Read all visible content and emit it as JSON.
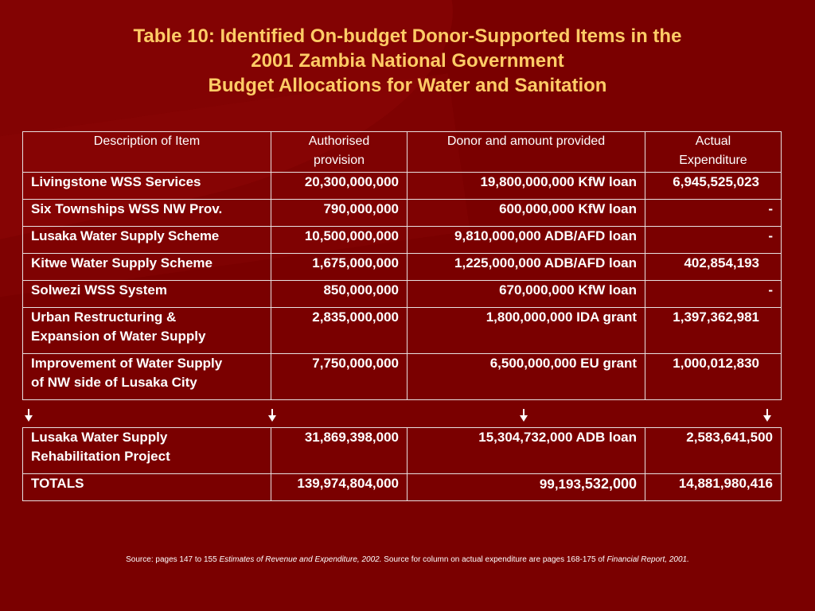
{
  "title": {
    "line1": "Table 10: Identified On-budget Donor-Supported Items in the",
    "line2": "2001 Zambia National Government",
    "line3": "Budget Allocations for Water and Sanitation"
  },
  "table": {
    "headers": {
      "description": "Description of Item",
      "authorised_1": "Authorised",
      "authorised_2": "provision",
      "donor": "Donor and amount provided",
      "actual_1": "Actual",
      "actual_2": "Expenditure"
    },
    "rows": [
      {
        "desc1": "Livingstone WSS Services",
        "desc2": "",
        "authorised": "20,300,000,000",
        "donor": "19,800,000,000 KfW loan",
        "actual": "6,945,525,023"
      },
      {
        "desc1": "Six Townships WSS NW Prov.",
        "desc2": "",
        "authorised": "790,000,000",
        "donor": "600,000,000 KfW loan",
        "actual": "-"
      },
      {
        "desc1": "Lusaka Water Supply Scheme",
        "desc2": "",
        "authorised": "10,500,000,000",
        "donor": "9,810,000,000 ADB/AFD loan",
        "actual": "-"
      },
      {
        "desc1": "Kitwe Water Supply Scheme",
        "desc2": "",
        "authorised": "1,675,000,000",
        "donor": "1,225,000,000 ADB/AFD loan",
        "actual": "402,854,193"
      },
      {
        "desc1": "Solwezi WSS System",
        "desc2": "",
        "authorised": "850,000,000",
        "donor": "670,000,000 KfW loan",
        "actual": "-"
      },
      {
        "desc1": "Urban Restructuring &",
        "desc2": "Expansion of Water Supply",
        "authorised": "2,835,000,000",
        "donor": "1,800,000,000 IDA grant",
        "actual": "1,397,362,981"
      },
      {
        "desc1": "Improvement of Water Supply",
        "desc2": "of NW side of Lusaka City",
        "authorised": "7,750,000,000",
        "donor": "6,500,000,000 EU grant",
        "actual": "1,000,012,830"
      }
    ],
    "bottom_rows": [
      {
        "desc1": "Lusaka Water Supply",
        "desc2": "Rehabilitation Project",
        "authorised": "31,869,398,000",
        "donor": "15,304,732,000 ADB loan",
        "actual": "2,583,641,500"
      }
    ],
    "totals": {
      "label": "TOTALS",
      "authorised": "139,974,804,000",
      "donor_part1": "99,193",
      "donor_part2": ",532,000",
      "actual": "14,881,980,416"
    }
  },
  "source": {
    "prefix": "Source: pages 147 to 155 ",
    "ref1": "Estimates of Revenue and Expenditure, 2002.",
    "middle": " Source for column on actual expenditure are pages 168-175 of ",
    "ref2": "Financial Report, 2001."
  },
  "colors": {
    "background": "#7a0000",
    "title": "#ffcc66",
    "text": "#ffffff",
    "border": "#e8e0e0"
  }
}
